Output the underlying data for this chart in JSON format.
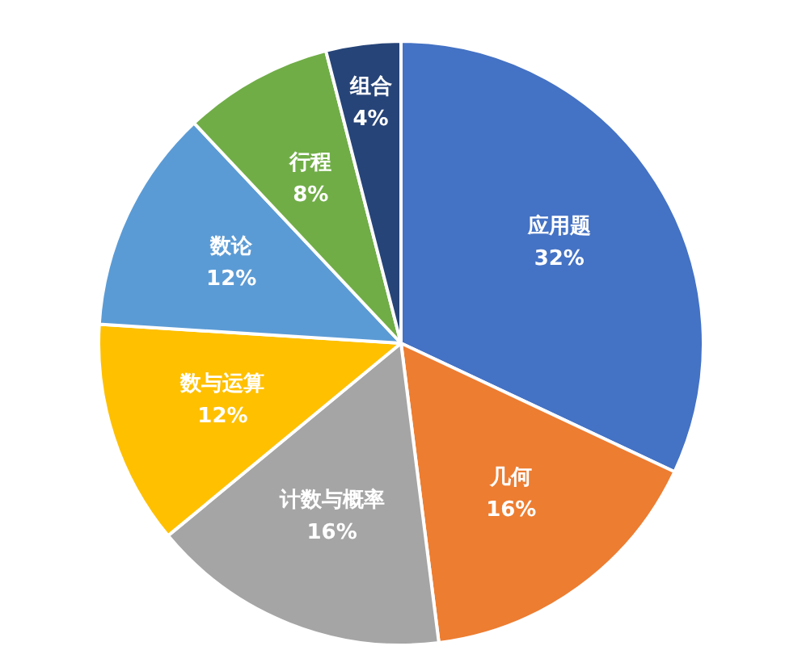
{
  "chart_data": {
    "type": "pie",
    "categories": [
      "应用题",
      "几何",
      "计数与概率",
      "数与运算",
      "数论",
      "行程",
      "组合"
    ],
    "values": [
      32,
      16,
      16,
      12,
      12,
      8,
      4
    ],
    "value_labels": [
      "32%",
      "16%",
      "16%",
      "12%",
      "12%",
      "8%",
      "4%"
    ],
    "colors": [
      "#4472c4",
      "#ed7d31",
      "#a5a5a5",
      "#ffc000",
      "#5b9bd5",
      "#70ad47",
      "#264478"
    ],
    "legend": false
  }
}
